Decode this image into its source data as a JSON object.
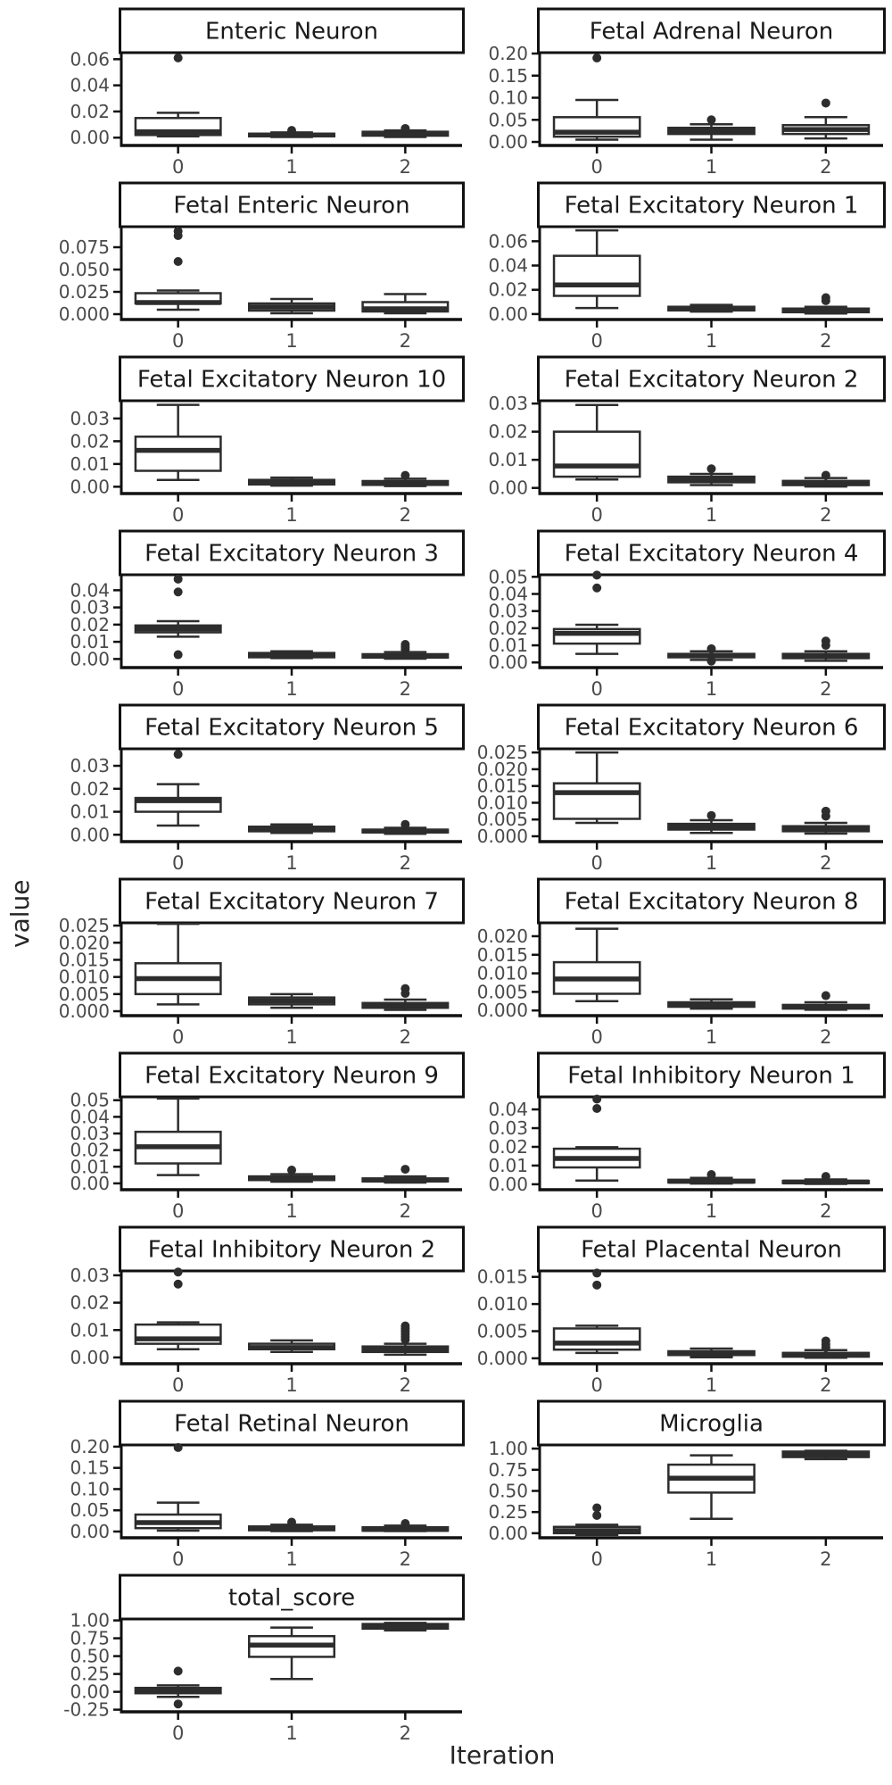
{
  "figure": {
    "xlabel": "Iteration",
    "ylabel": "value"
  },
  "chart_data": {
    "type": "boxplot",
    "layout": {
      "ncols": 2,
      "nrows": 10,
      "grid": false,
      "legend": "none"
    },
    "xlabel": "Iteration",
    "ylabel": "value",
    "categories": [
      "0",
      "1",
      "2"
    ],
    "colors": {
      "spine": "#111111",
      "box_stroke": "#2d2d2d",
      "box_fill": "#ffffff",
      "tick_label": "#4a4a4a",
      "title": "#1a1a1a"
    },
    "facets": [
      {
        "title": "Enteric Neuron",
        "yticks": [
          "0.00",
          "0.02",
          "0.04",
          "0.06"
        ],
        "ylim": [
          -0.006,
          0.065
        ],
        "boxes": [
          {
            "lo": 0.001,
            "q1": 0.002,
            "med": 0.0045,
            "q3": 0.015,
            "hi": 0.019,
            "out": [
              0.061
            ]
          },
          {
            "lo": 0.0005,
            "q1": 0.001,
            "med": 0.002,
            "q3": 0.003,
            "hi": 0.004,
            "out": [
              0.0055
            ]
          },
          {
            "lo": 0.0005,
            "q1": 0.0015,
            "med": 0.003,
            "q3": 0.0045,
            "hi": 0.0055,
            "out": [
              0.007
            ]
          }
        ]
      },
      {
        "title": "Fetal Adrenal Neuron",
        "yticks": [
          "0.00",
          "0.05",
          "0.10",
          "0.15",
          "0.20"
        ],
        "ylim": [
          -0.008,
          0.202
        ],
        "boxes": [
          {
            "lo": 0.005,
            "q1": 0.012,
            "med": 0.022,
            "q3": 0.056,
            "hi": 0.095,
            "out": [
              0.19
            ]
          },
          {
            "lo": 0.005,
            "q1": 0.018,
            "med": 0.025,
            "q3": 0.032,
            "hi": 0.04,
            "out": [
              0.05
            ]
          },
          {
            "lo": 0.008,
            "q1": 0.018,
            "med": 0.028,
            "q3": 0.038,
            "hi": 0.056,
            "out": [
              0.088
            ]
          }
        ]
      },
      {
        "title": "Fetal Enteric Neuron",
        "yticks": [
          "0.000",
          "0.025",
          "0.050",
          "0.075"
        ],
        "ylim": [
          -0.006,
          0.098
        ],
        "boxes": [
          {
            "lo": 0.005,
            "q1": 0.012,
            "med": 0.013,
            "q3": 0.0235,
            "hi": 0.0265,
            "out": [
              0.059,
              0.088,
              0.093
            ]
          },
          {
            "lo": 0.001,
            "q1": 0.004,
            "med": 0.008,
            "q3": 0.012,
            "hi": 0.017,
            "out": []
          },
          {
            "lo": 0.001,
            "q1": 0.003,
            "med": 0.006,
            "q3": 0.0135,
            "hi": 0.0225,
            "out": []
          }
        ]
      },
      {
        "title": "Fetal Excitatory Neuron 1",
        "yticks": [
          "0.00",
          "0.02",
          "0.04",
          "0.06"
        ],
        "ylim": [
          -0.0045,
          0.072
        ],
        "boxes": [
          {
            "lo": 0.005,
            "q1": 0.015,
            "med": 0.024,
            "q3": 0.048,
            "hi": 0.069,
            "out": []
          },
          {
            "lo": 0.002,
            "q1": 0.003,
            "med": 0.0045,
            "q3": 0.006,
            "hi": 0.0075,
            "out": []
          },
          {
            "lo": 0.0005,
            "q1": 0.0015,
            "med": 0.003,
            "q3": 0.0045,
            "hi": 0.006,
            "out": [
              0.011,
              0.0135
            ]
          }
        ]
      },
      {
        "title": "Fetal Excitatory Neuron 10",
        "yticks": [
          "0.00",
          "0.01",
          "0.02",
          "0.03"
        ],
        "ylim": [
          -0.003,
          0.0378
        ],
        "boxes": [
          {
            "lo": 0.003,
            "q1": 0.007,
            "med": 0.016,
            "q3": 0.022,
            "hi": 0.036,
            "out": []
          },
          {
            "lo": 0.0005,
            "q1": 0.001,
            "med": 0.002,
            "q3": 0.003,
            "hi": 0.004,
            "out": []
          },
          {
            "lo": 0.0003,
            "q1": 0.0008,
            "med": 0.0015,
            "q3": 0.0025,
            "hi": 0.0035,
            "out": [
              0.005
            ]
          }
        ]
      },
      {
        "title": "Fetal Excitatory Neuron 2",
        "yticks": [
          "0.00",
          "0.01",
          "0.02",
          "0.03"
        ],
        "ylim": [
          -0.002,
          0.031
        ],
        "boxes": [
          {
            "lo": 0.003,
            "q1": 0.004,
            "med": 0.0078,
            "q3": 0.02,
            "hi": 0.0295,
            "out": []
          },
          {
            "lo": 0.001,
            "q1": 0.002,
            "med": 0.003,
            "q3": 0.004,
            "hi": 0.005,
            "out": [
              0.0068
            ]
          },
          {
            "lo": 0.0005,
            "q1": 0.001,
            "med": 0.0018,
            "q3": 0.0025,
            "hi": 0.0035,
            "out": [
              0.0045
            ]
          }
        ]
      },
      {
        "title": "Fetal Excitatory Neuron 3",
        "yticks": [
          "0.00",
          "0.01",
          "0.02",
          "0.03",
          "0.04"
        ],
        "ylim": [
          -0.005,
          0.049
        ],
        "boxes": [
          {
            "lo": 0.013,
            "q1": 0.0155,
            "med": 0.0175,
            "q3": 0.0195,
            "hi": 0.022,
            "out": [
              0.0025,
              0.039,
              0.0465
            ]
          },
          {
            "lo": 0.0005,
            "q1": 0.001,
            "med": 0.0022,
            "q3": 0.0035,
            "hi": 0.0045,
            "out": []
          },
          {
            "lo": 0.0002,
            "q1": 0.0008,
            "med": 0.0018,
            "q3": 0.0028,
            "hi": 0.004,
            "out": [
              0.0055,
              0.007,
              0.0085
            ]
          }
        ]
      },
      {
        "title": "Fetal Excitatory Neuron 4",
        "yticks": [
          "0.00",
          "0.01",
          "0.02",
          "0.03",
          "0.04",
          "0.05"
        ],
        "ylim": [
          -0.003,
          0.0512
        ],
        "boxes": [
          {
            "lo": 0.005,
            "q1": 0.011,
            "med": 0.017,
            "q3": 0.0195,
            "hi": 0.022,
            "out": [
              0.0435,
              0.051
            ]
          },
          {
            "lo": 0.0015,
            "q1": 0.003,
            "med": 0.004,
            "q3": 0.005,
            "hi": 0.0065,
            "out": [
              0.0008,
              0.008
            ]
          },
          {
            "lo": 0.001,
            "q1": 0.0025,
            "med": 0.0035,
            "q3": 0.005,
            "hi": 0.0065,
            "out": [
              0.01,
              0.0125
            ]
          }
        ]
      },
      {
        "title": "Fetal Excitatory Neuron 5",
        "yticks": [
          "0.00",
          "0.01",
          "0.02",
          "0.03"
        ],
        "ylim": [
          -0.003,
          0.0374
        ],
        "boxes": [
          {
            "lo": 0.004,
            "q1": 0.01,
            "med": 0.0148,
            "q3": 0.016,
            "hi": 0.022,
            "out": [
              0.035
            ]
          },
          {
            "lo": 0.0008,
            "q1": 0.0015,
            "med": 0.0025,
            "q3": 0.0035,
            "hi": 0.0045,
            "out": []
          },
          {
            "lo": 0.0004,
            "q1": 0.001,
            "med": 0.0016,
            "q3": 0.0022,
            "hi": 0.003,
            "out": [
              0.0045
            ]
          }
        ]
      },
      {
        "title": "Fetal Excitatory Neuron 6",
        "yticks": [
          "0.000",
          "0.005",
          "0.010",
          "0.015",
          "0.020",
          "0.025"
        ],
        "ylim": [
          -0.0016,
          0.0261
        ],
        "boxes": [
          {
            "lo": 0.004,
            "q1": 0.0052,
            "med": 0.013,
            "q3": 0.0158,
            "hi": 0.025,
            "out": []
          },
          {
            "lo": 0.001,
            "q1": 0.002,
            "med": 0.003,
            "q3": 0.0037,
            "hi": 0.0048,
            "out": [
              0.0062
            ]
          },
          {
            "lo": 0.0008,
            "q1": 0.0015,
            "med": 0.0024,
            "q3": 0.003,
            "hi": 0.004,
            "out": [
              0.006,
              0.0075
            ]
          }
        ]
      },
      {
        "title": "Fetal Excitatory Neuron 7",
        "yticks": [
          "0.000",
          "0.005",
          "0.010",
          "0.015",
          "0.020",
          "0.025"
        ],
        "ylim": [
          -0.0013,
          0.0258
        ],
        "boxes": [
          {
            "lo": 0.002,
            "q1": 0.005,
            "med": 0.0095,
            "q3": 0.014,
            "hi": 0.0255,
            "out": []
          },
          {
            "lo": 0.001,
            "q1": 0.002,
            "med": 0.003,
            "q3": 0.004,
            "hi": 0.005,
            "out": []
          },
          {
            "lo": 0.0004,
            "q1": 0.001,
            "med": 0.0016,
            "q3": 0.0024,
            "hi": 0.0034,
            "out": [
              0.0052,
              0.0066
            ]
          }
        ]
      },
      {
        "title": "Fetal Excitatory Neuron 8",
        "yticks": [
          "0.000",
          "0.005",
          "0.010",
          "0.015",
          "0.020"
        ],
        "ylim": [
          -0.0014,
          0.0236
        ],
        "boxes": [
          {
            "lo": 0.0025,
            "q1": 0.0045,
            "med": 0.0085,
            "q3": 0.013,
            "hi": 0.022,
            "out": []
          },
          {
            "lo": 0.0005,
            "q1": 0.001,
            "med": 0.0016,
            "q3": 0.0022,
            "hi": 0.003,
            "out": []
          },
          {
            "lo": 0.0002,
            "q1": 0.0005,
            "med": 0.001,
            "q3": 0.0015,
            "hi": 0.0022,
            "out": [
              0.004
            ]
          }
        ]
      },
      {
        "title": "Fetal Excitatory Neuron 9",
        "yticks": [
          "0.00",
          "0.01",
          "0.02",
          "0.03",
          "0.04",
          "0.05"
        ],
        "ylim": [
          -0.0038,
          0.052
        ],
        "boxes": [
          {
            "lo": 0.005,
            "q1": 0.012,
            "med": 0.022,
            "q3": 0.031,
            "hi": 0.051,
            "out": []
          },
          {
            "lo": 0.001,
            "q1": 0.002,
            "med": 0.003,
            "q3": 0.0042,
            "hi": 0.0055,
            "out": [
              0.008
            ]
          },
          {
            "lo": 0.0005,
            "q1": 0.0012,
            "med": 0.002,
            "q3": 0.003,
            "hi": 0.0042,
            "out": [
              0.0085
            ]
          }
        ]
      },
      {
        "title": "Fetal Inhibitory Neuron 1",
        "yticks": [
          "0.00",
          "0.01",
          "0.02",
          "0.03",
          "0.04"
        ],
        "ylim": [
          -0.0029,
          0.0467
        ],
        "boxes": [
          {
            "lo": 0.002,
            "q1": 0.009,
            "med": 0.0138,
            "q3": 0.019,
            "hi": 0.0198,
            "out": [
              0.0405,
              0.0455
            ]
          },
          {
            "lo": 0.0004,
            "q1": 0.001,
            "med": 0.0016,
            "q3": 0.0024,
            "hi": 0.0034,
            "out": [
              0.0052
            ]
          },
          {
            "lo": 0.0002,
            "q1": 0.0006,
            "med": 0.0012,
            "q3": 0.0018,
            "hi": 0.0026,
            "out": [
              0.0042
            ]
          }
        ]
      },
      {
        "title": "Fetal Inhibitory Neuron 2",
        "yticks": [
          "0.00",
          "0.01",
          "0.02",
          "0.03"
        ],
        "ylim": [
          -0.0023,
          0.0316
        ],
        "boxes": [
          {
            "lo": 0.003,
            "q1": 0.005,
            "med": 0.0068,
            "q3": 0.012,
            "hi": 0.0128,
            "out": [
              0.0268,
              0.0312
            ]
          },
          {
            "lo": 0.002,
            "q1": 0.003,
            "med": 0.0036,
            "q3": 0.005,
            "hi": 0.0062,
            "out": []
          },
          {
            "lo": 0.001,
            "q1": 0.002,
            "med": 0.003,
            "q3": 0.004,
            "hi": 0.005,
            "out": [
              0.0065,
              0.0075,
              0.0085,
              0.0095,
              0.0105,
              0.0115
            ]
          }
        ]
      },
      {
        "title": "Fetal Placental Neuron",
        "yticks": [
          "0.000",
          "0.005",
          "0.010",
          "0.015"
        ],
        "ylim": [
          -0.001,
          0.0161
        ],
        "boxes": [
          {
            "lo": 0.001,
            "q1": 0.0016,
            "med": 0.0028,
            "q3": 0.0055,
            "hi": 0.006,
            "out": [
              0.0135,
              0.0157
            ]
          },
          {
            "lo": 0.0002,
            "q1": 0.0006,
            "med": 0.001,
            "q3": 0.0013,
            "hi": 0.0018,
            "out": []
          },
          {
            "lo": 0.0001,
            "q1": 0.0003,
            "med": 0.0007,
            "q3": 0.001,
            "hi": 0.0015,
            "out": [
              0.002,
              0.0026,
              0.0032
            ]
          }
        ]
      },
      {
        "title": "Fetal Retinal Neuron",
        "yticks": [
          "0.00",
          "0.05",
          "0.10",
          "0.15",
          "0.20"
        ],
        "ylim": [
          -0.0147,
          0.204
        ],
        "boxes": [
          {
            "lo": 0.002,
            "q1": 0.008,
            "med": 0.021,
            "q3": 0.04,
            "hi": 0.068,
            "out": [
              0.198
            ]
          },
          {
            "lo": 0.001,
            "q1": 0.003,
            "med": 0.007,
            "q3": 0.012,
            "hi": 0.016,
            "out": [
              0.022
            ]
          },
          {
            "lo": 0.001,
            "q1": 0.002,
            "med": 0.005,
            "q3": 0.01,
            "hi": 0.014,
            "out": [
              0.019
            ]
          }
        ]
      },
      {
        "title": "Microglia",
        "yticks": [
          "0.00",
          "0.25",
          "0.50",
          "0.75",
          "1.00"
        ],
        "ylim": [
          -0.054,
          1.043
        ],
        "boxes": [
          {
            "lo": -0.02,
            "q1": 0.0,
            "med": 0.03,
            "q3": 0.075,
            "hi": 0.1,
            "out": [
              0.21,
              0.3
            ]
          },
          {
            "lo": 0.17,
            "q1": 0.48,
            "med": 0.65,
            "q3": 0.81,
            "hi": 0.92,
            "out": []
          },
          {
            "lo": 0.875,
            "q1": 0.9,
            "med": 0.935,
            "q3": 0.965,
            "hi": 0.975,
            "out": []
          }
        ]
      },
      {
        "title": "total_score",
        "yticks": [
          "-0.25",
          "0.00",
          "0.25",
          "0.50",
          "0.75",
          "1.00"
        ],
        "ylim": [
          -0.28,
          1.02
        ],
        "boxes": [
          {
            "lo": -0.07,
            "q1": -0.02,
            "med": 0.01,
            "q3": 0.055,
            "hi": 0.09,
            "out": [
              0.29,
              -0.17
            ]
          },
          {
            "lo": 0.18,
            "q1": 0.49,
            "med": 0.655,
            "q3": 0.78,
            "hi": 0.9,
            "out": []
          },
          {
            "lo": 0.86,
            "q1": 0.885,
            "med": 0.92,
            "q3": 0.95,
            "hi": 0.965,
            "out": []
          }
        ]
      }
    ]
  }
}
